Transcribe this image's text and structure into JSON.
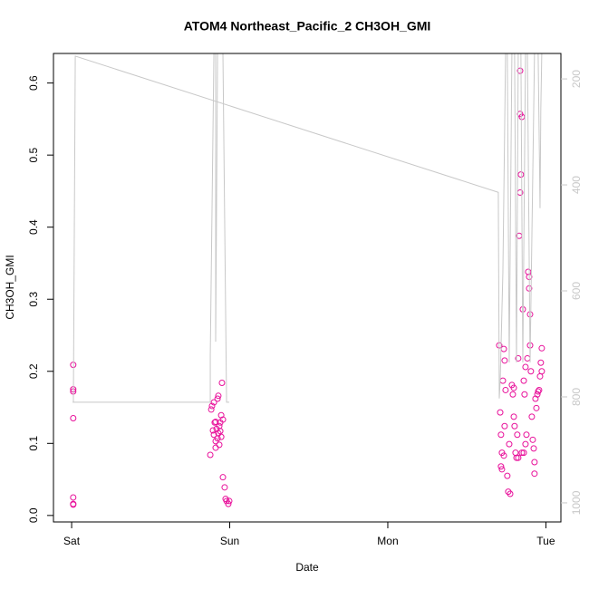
{
  "chart_data": {
    "type": "scatter",
    "title": "ATOM4 Northeast_Pacific_2 CH3OH_GMI",
    "x_label": "Date",
    "y_label": "CH3OH_GMI",
    "xlim": [
      -0.115,
      3.095
    ],
    "xticks": [
      {
        "value": 0,
        "label": "Sat"
      },
      {
        "value": 1,
        "label": "Sun"
      },
      {
        "value": 2,
        "label": "Mon"
      },
      {
        "value": 3,
        "label": "Tue"
      }
    ],
    "ylim": [
      -0.009,
      0.641
    ],
    "yticks": [
      {
        "value": 0,
        "label": "0.0"
      },
      0.1,
      0.2,
      0.3,
      0.4,
      0.5,
      0.6
    ],
    "y2lim": [
      1036,
      152
    ],
    "y2ticks": [
      200,
      400,
      600,
      800,
      1000
    ],
    "y2_color": "#c8c8c8",
    "series": [
      {
        "color": "#e8109a",
        "x": [
          0.01,
          0.01,
          0.01,
          0.01,
          0.01,
          0.01,
          0.01,
          0.877,
          0.883,
          0.888,
          0.9,
          0.905,
          0.911,
          0.923,
          0.928,
          0.934,
          0.94,
          0.946,
          0.951,
          0.957,
          0.968,
          0.974,
          0.98,
          0.991,
          0.997,
          0.9,
          0.911,
          0.923,
          0.934,
          0.917,
          0.94,
          0.894,
          0.911,
          0.946,
          0.957,
          0.928,
          2.705,
          2.734,
          2.739,
          2.728,
          2.745,
          2.711,
          2.716,
          2.722,
          2.716,
          2.722,
          2.739,
          2.756,
          2.762,
          2.774,
          2.768,
          2.785,
          2.791,
          2.797,
          2.802,
          2.808,
          2.814,
          2.819,
          2.825,
          2.831,
          2.837,
          2.842,
          2.837,
          2.848,
          2.837,
          2.854,
          2.86,
          2.865,
          2.871,
          2.877,
          2.883,
          2.888,
          2.894,
          2.894,
          2.9,
          2.9,
          2.905,
          2.911,
          2.917,
          2.923,
          2.928,
          2.928,
          2.934,
          2.94,
          2.946,
          2.951,
          2.957,
          2.963,
          2.968,
          2.974,
          2.974,
          2.871,
          2.848,
          2.86,
          2.825,
          2.797,
          2.734
        ],
        "values": [
          0.209,
          0.175,
          0.172,
          0.135,
          0.025,
          0.016,
          0.015,
          0.084,
          0.147,
          0.152,
          0.157,
          0.129,
          0.13,
          0.162,
          0.166,
          0.124,
          0.117,
          0.139,
          0.184,
          0.053,
          0.039,
          0.023,
          0.02,
          0.016,
          0.02,
          0.112,
          0.103,
          0.107,
          0.098,
          0.12,
          0.129,
          0.118,
          0.094,
          0.109,
          0.133,
          0.114,
          0.236,
          0.231,
          0.215,
          0.187,
          0.174,
          0.143,
          0.112,
          0.087,
          0.068,
          0.064,
          0.124,
          0.055,
          0.033,
          0.03,
          0.099,
          0.181,
          0.168,
          0.137,
          0.124,
          0.087,
          0.08,
          0.112,
          0.218,
          0.388,
          0.448,
          0.473,
          0.557,
          0.553,
          0.617,
          0.286,
          0.187,
          0.168,
          0.099,
          0.112,
          0.218,
          0.338,
          0.331,
          0.315,
          0.279,
          0.236,
          0.2,
          0.137,
          0.105,
          0.093,
          0.074,
          0.058,
          0.162,
          0.149,
          0.168,
          0.172,
          0.174,
          0.193,
          0.212,
          0.232,
          0.2,
          0.206,
          0.087,
          0.087,
          0.08,
          0.177,
          0.083
        ]
      },
      {
        "type": "line",
        "axis": "y2",
        "color": "#c8c8c8",
        "x": [
          0.006,
          0.011,
          0.023,
          2.699,
          2.705,
          2.711,
          2.728,
          2.745,
          2.756,
          2.768,
          2.785,
          2.802,
          2.814,
          2.825,
          2.842,
          2.854,
          2.871,
          2.883,
          2.9,
          2.928,
          2.951,
          2.963,
          2.968,
          2.974,
          2.986,
          null,
          0.011,
          0.877,
          0.877,
          0.9,
          0.911,
          0.911,
          0.923,
          0.957,
          0.98,
          0.997
        ],
        "values": [
          810,
          810,
          157,
          414,
          803,
          769,
          564,
          152,
          152,
          735,
          152,
          152,
          735,
          152,
          152,
          735,
          152,
          152,
          735,
          152,
          152,
          444,
          256,
          152,
          152,
          null,
          810,
          810,
          721,
          152,
          152,
          696,
          152,
          152,
          810,
          810
        ]
      }
    ]
  }
}
